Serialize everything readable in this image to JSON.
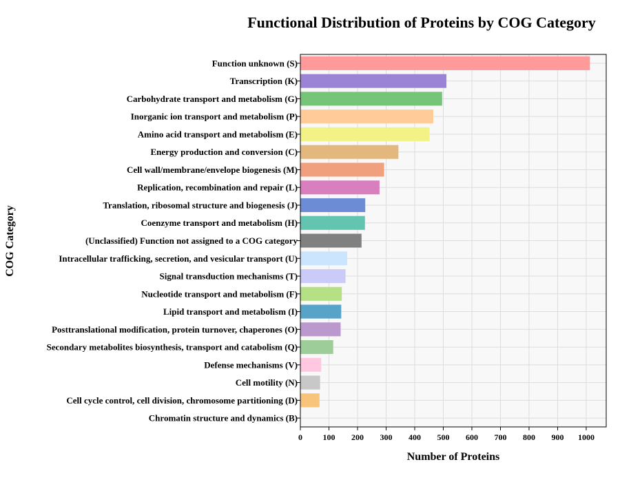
{
  "chart_data": {
    "type": "bar",
    "orientation": "horizontal",
    "title": "Functional Distribution of Proteins by COG Category",
    "xlabel": "Number of Proteins",
    "ylabel": "COG Category",
    "xlim": [
      0,
      1070
    ],
    "xticks": [
      0,
      100,
      200,
      300,
      400,
      500,
      600,
      700,
      800,
      900,
      1000
    ],
    "grid": true,
    "categories": [
      "Function unknown (S)",
      "Transcription (K)",
      "Carbohydrate transport and metabolism (G)",
      "Inorganic ion transport and metabolism (P)",
      "Amino acid transport and metabolism (E)",
      "Energy production and conversion (C)",
      "Cell wall/membrane/envelope biogenesis (M)",
      "Replication, recombination and repair (L)",
      "Translation, ribosomal structure and biogenesis (J)",
      "Coenzyme transport and metabolism (H)",
      "(Unclassified) Function not assigned to a COG category",
      "Intracellular trafficking, secretion, and vesicular transport (U)",
      "Signal transduction mechanisms (T)",
      "Nucleotide transport and metabolism (F)",
      "Lipid transport and metabolism (I)",
      "Posttranslational modification, protein turnover, chaperones (O)",
      "Secondary metabolites biosynthesis, transport and catabolism (Q)",
      "Defense mechanisms (V)",
      "Cell motility (N)",
      "Cell cycle control, cell division, chromosome partitioning (D)",
      "Chromatin structure and dynamics (B)"
    ],
    "values": [
      1013,
      511,
      496,
      465,
      452,
      343,
      293,
      277,
      227,
      226,
      214,
      164,
      158,
      145,
      143,
      141,
      115,
      73,
      69,
      67,
      0
    ],
    "colors": [
      "#ff9a9a",
      "#9b84d6",
      "#76c478",
      "#ffcc99",
      "#f2f287",
      "#e2b87e",
      "#f0a07c",
      "#d87fbd",
      "#6c8dd6",
      "#63c4b0",
      "#808080",
      "#cce5ff",
      "#cbcbfa",
      "#b6e085",
      "#58a3c8",
      "#bb99cf",
      "#9dcd99",
      "#ffc8e0",
      "#c8c8c8",
      "#f8c47b",
      "#dddddd"
    ]
  }
}
